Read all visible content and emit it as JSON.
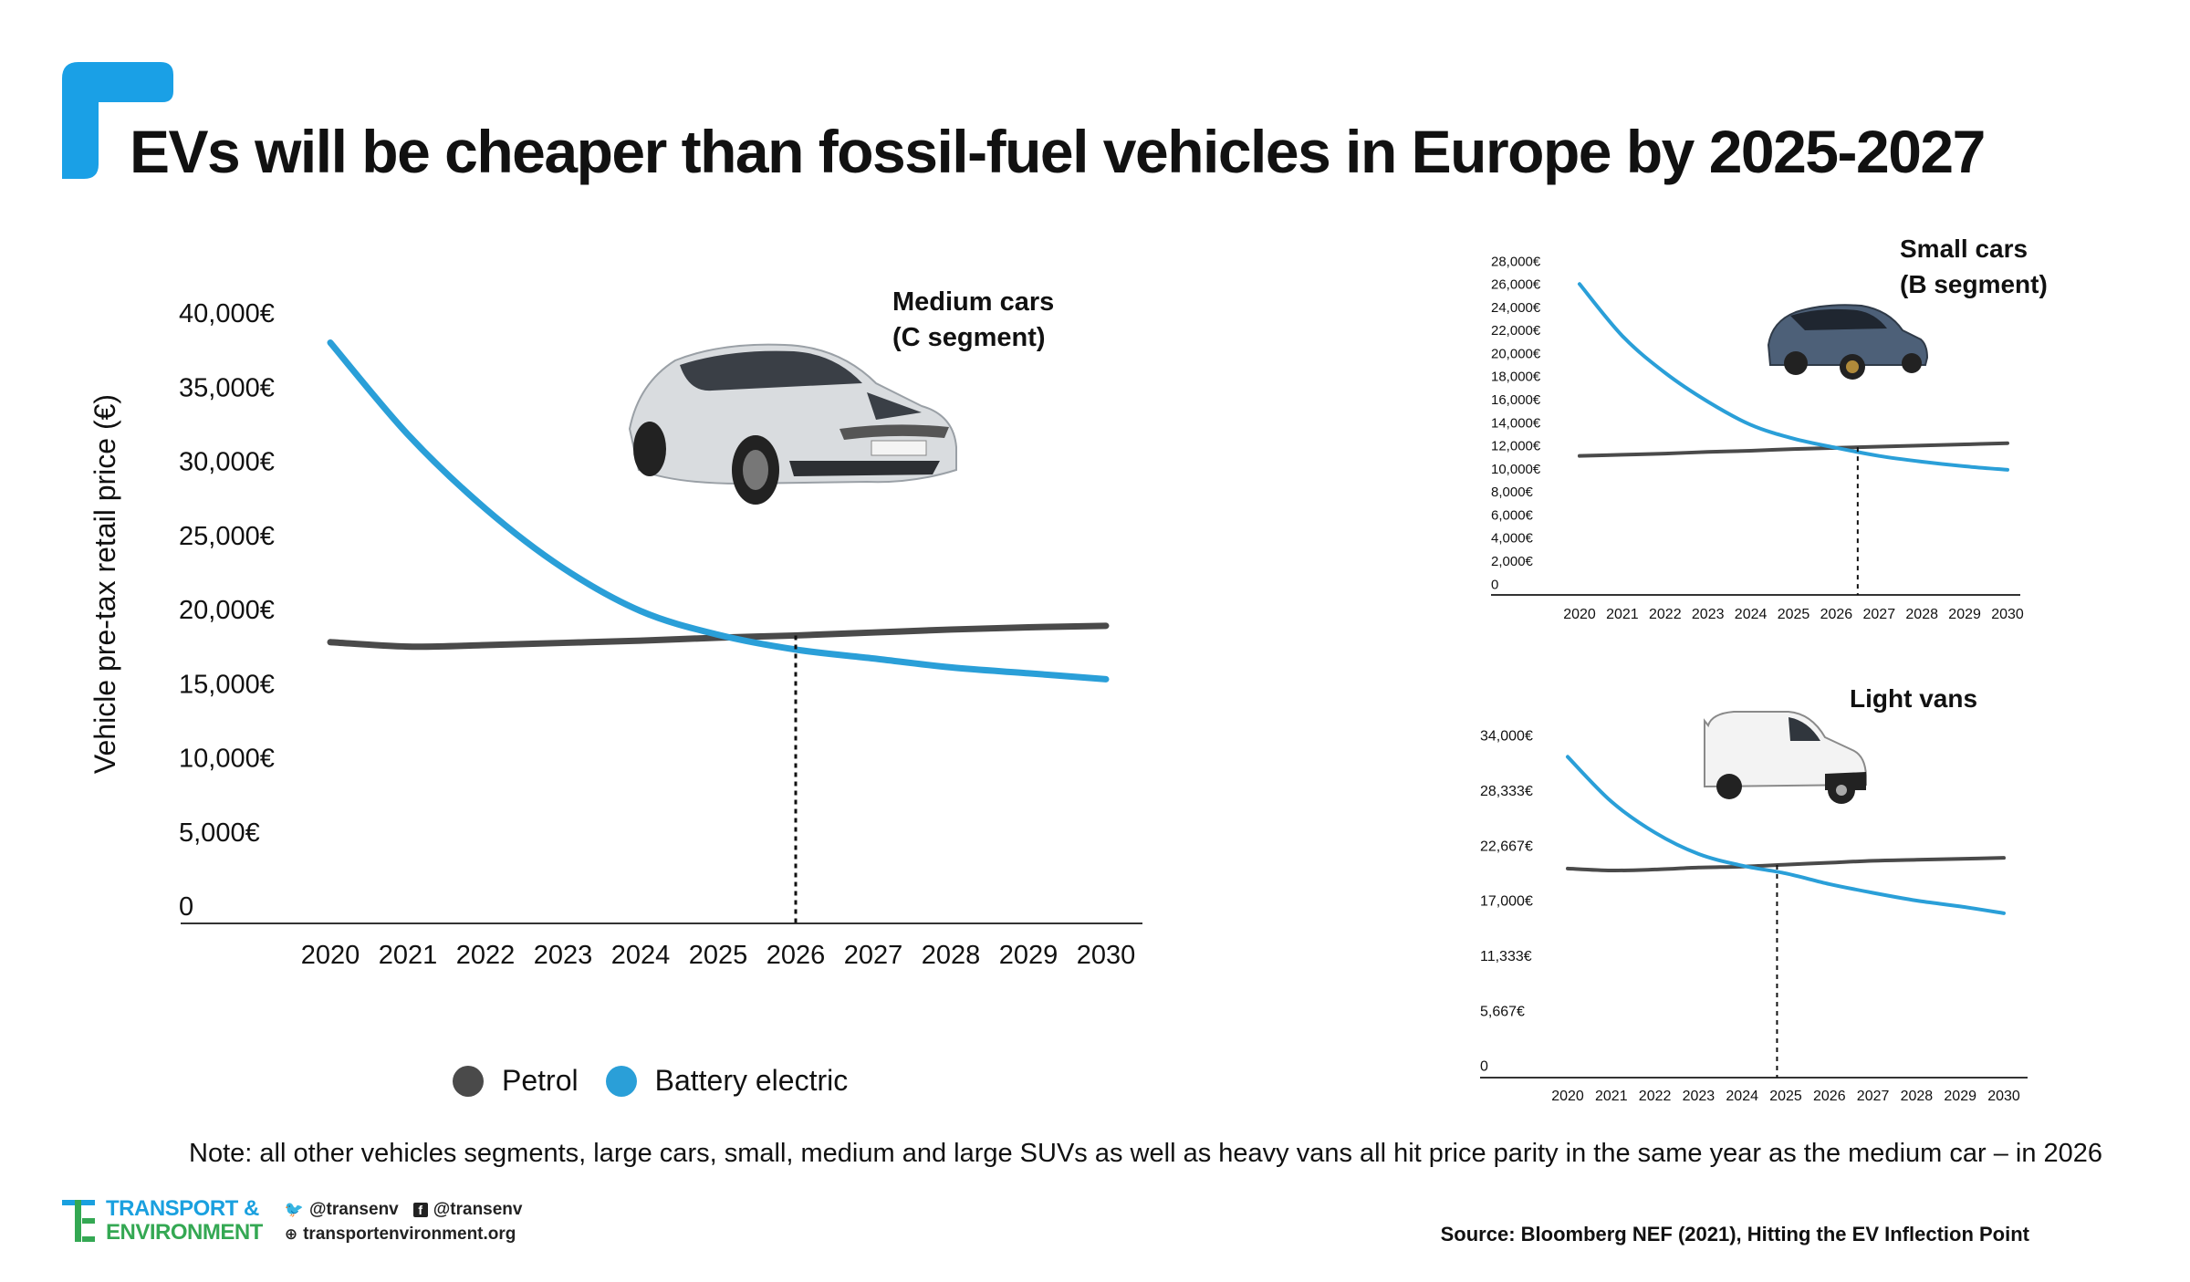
{
  "title": "EVs will be cheaper than fossil-fuel vehicles in Europe by 2025-2027",
  "colors": {
    "petrol": "#4a4a4a",
    "battery_electric": "#2a9fd8",
    "accent": "#1aa0e6",
    "axis": "#333333"
  },
  "legend": {
    "petrol": "Petrol",
    "battery_electric": "Battery electric"
  },
  "note": "Note: all other vehicles segments, large cars, small, medium and large SUVs as well as heavy vans all hit price parity in the same year as the medium car – in 2026",
  "source": "Source: Bloomberg NEF (2021), Hitting the EV Inflection Point",
  "footer": {
    "brand_line1": "TRANSPORT &",
    "brand_line2": "ENVIRONMENT",
    "twitter": "@transenv",
    "facebook": "@transenv",
    "website": "transportenvironment.org"
  },
  "chart_data": [
    {
      "type": "line",
      "title_lines": [
        "Medium cars",
        "(C segment)"
      ],
      "ylabel": "Vehicle pre-tax retail price (€)",
      "xlabel": "",
      "ylim": [
        0,
        40000
      ],
      "x": [
        2020,
        2021,
        2022,
        2023,
        2024,
        2025,
        2026,
        2027,
        2028,
        2029,
        2030
      ],
      "yticks": [
        0,
        5000,
        10000,
        15000,
        20000,
        25000,
        30000,
        35000,
        40000
      ],
      "ytick_labels": [
        "0",
        "5,000€",
        "10,000€",
        "15,000€",
        "20,000€",
        "25,000€",
        "30,000€",
        "35,000€",
        "40,000€"
      ],
      "parity_year": 2026,
      "series": [
        {
          "name": "Petrol",
          "values": [
            17800,
            17500,
            17600,
            17750,
            17900,
            18100,
            18250,
            18450,
            18650,
            18800,
            18900
          ]
        },
        {
          "name": "Battery electric",
          "values": [
            38000,
            31800,
            26800,
            22800,
            19900,
            18300,
            17300,
            16700,
            16100,
            15700,
            15300
          ]
        }
      ]
    },
    {
      "type": "line",
      "title_lines": [
        "Small cars",
        "(B segment)"
      ],
      "ylabel": "",
      "xlabel": "",
      "ylim": [
        0,
        28000
      ],
      "x": [
        2020,
        2021,
        2022,
        2023,
        2024,
        2025,
        2026,
        2027,
        2028,
        2029,
        2030
      ],
      "yticks": [
        0,
        2000,
        4000,
        6000,
        8000,
        10000,
        12000,
        14000,
        16000,
        18000,
        20000,
        22000,
        24000,
        26000,
        28000
      ],
      "ytick_labels": [
        "0",
        "2,000€",
        "4,000€",
        "6,000€",
        "8,000€",
        "10,000€",
        "12,000€",
        "14,000€",
        "16,000€",
        "18,000€",
        "20,000€",
        "22,000€",
        "24,000€",
        "26,000€",
        "28,000€"
      ],
      "parity_year": 2026.5,
      "series": [
        {
          "name": "Petrol",
          "values": [
            11100,
            11200,
            11300,
            11450,
            11550,
            11700,
            11800,
            11900,
            12000,
            12100,
            12200
          ]
        },
        {
          "name": "Battery electric",
          "values": [
            26000,
            21500,
            18300,
            15800,
            13800,
            12600,
            11800,
            11100,
            10600,
            10200,
            9900
          ]
        }
      ]
    },
    {
      "type": "line",
      "title_lines": [
        "Light vans"
      ],
      "ylabel": "",
      "xlabel": "",
      "ylim": [
        0,
        34000
      ],
      "x": [
        2020,
        2021,
        2022,
        2023,
        2024,
        2025,
        2026,
        2027,
        2028,
        2029,
        2030
      ],
      "yticks": [
        0,
        5667,
        11333,
        17000,
        22667,
        28333,
        34000
      ],
      "ytick_labels": [
        "0",
        "5,667€",
        "11,333€",
        "17,000€",
        "22,667€",
        "28,333€",
        "34,000€"
      ],
      "parity_year": 2024.8,
      "series": [
        {
          "name": "Petrol",
          "values": [
            20300,
            20100,
            20200,
            20400,
            20500,
            20700,
            20900,
            21100,
            21200,
            21300,
            21400
          ]
        },
        {
          "name": "Battery electric",
          "values": [
            31800,
            27200,
            24000,
            21800,
            20600,
            19800,
            18700,
            17800,
            17000,
            16400,
            15700
          ]
        }
      ]
    }
  ]
}
